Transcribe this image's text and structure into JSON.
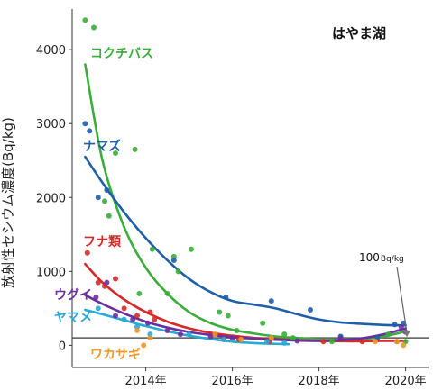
{
  "chart_data": {
    "type": "scatter",
    "title": "はやま湖",
    "ylabel": "放射性セシウム濃度(Bq/kg)",
    "xlabel": "",
    "xlim": [
      2012.3,
      2020.55
    ],
    "ylim": [
      -300,
      4550
    ],
    "x_ticks": [
      2014,
      2016,
      2018,
      2020
    ],
    "x_tick_labels": [
      "2014年",
      "2016年",
      "2018年",
      "2020年"
    ],
    "y_ticks": [
      0,
      1000,
      2000,
      3000,
      4000
    ],
    "y_tick_labels": [
      "0",
      "1000",
      "2000",
      "3000",
      "4000"
    ],
    "grid": false,
    "reference_line": {
      "value": 100,
      "label_number": "100",
      "label_unit": "Bq/kg",
      "color": "#555555"
    },
    "series": [
      {
        "name": "コクチバス",
        "color": "#3aad3a",
        "points": [
          [
            2012.6,
            4400
          ],
          [
            2012.8,
            4300
          ],
          [
            2013.05,
            1950
          ],
          [
            2013.15,
            1750
          ],
          [
            2013.3,
            2600
          ],
          [
            2013.75,
            2650
          ],
          [
            2013.85,
            700
          ],
          [
            2014.15,
            1300
          ],
          [
            2014.5,
            700
          ],
          [
            2014.65,
            1200
          ],
          [
            2014.75,
            1000
          ],
          [
            2015.05,
            1300
          ],
          [
            2015.7,
            450
          ],
          [
            2015.9,
            400
          ],
          [
            2016.1,
            200
          ],
          [
            2016.7,
            300
          ],
          [
            2017.2,
            150
          ],
          [
            2017.4,
            100
          ],
          [
            2018.3,
            50
          ],
          [
            2019.6,
            150
          ],
          [
            2020.0,
            50
          ]
        ],
        "trend": [
          [
            2012.6,
            3800
          ],
          [
            2013.0,
            2500
          ],
          [
            2013.5,
            1600
          ],
          [
            2014.0,
            1050
          ],
          [
            2014.5,
            700
          ],
          [
            2015.0,
            450
          ],
          [
            2015.5,
            300
          ],
          [
            2016.0,
            210
          ],
          [
            2016.5,
            160
          ],
          [
            2017.0,
            120
          ],
          [
            2017.5,
            100
          ],
          [
            2018.0,
            80
          ],
          [
            2018.5,
            75
          ],
          [
            2019.0,
            85
          ],
          [
            2019.5,
            120
          ],
          [
            2020.0,
            190
          ]
        ]
      },
      {
        "name": "ナマズ",
        "color": "#1f5fa8",
        "points": [
          [
            2012.6,
            3000
          ],
          [
            2012.7,
            2900
          ],
          [
            2012.9,
            2000
          ],
          [
            2013.1,
            2100
          ],
          [
            2014.65,
            1150
          ],
          [
            2015.85,
            650
          ],
          [
            2016.9,
            600
          ],
          [
            2017.8,
            480
          ],
          [
            2018.5,
            120
          ],
          [
            2019.35,
            100
          ],
          [
            2019.75,
            280
          ],
          [
            2019.95,
            300
          ]
        ],
        "trend": [
          [
            2012.6,
            2550
          ],
          [
            2013.0,
            2200
          ],
          [
            2013.5,
            1800
          ],
          [
            2014.0,
            1450
          ],
          [
            2014.5,
            1150
          ],
          [
            2015.0,
            900
          ],
          [
            2015.5,
            720
          ],
          [
            2016.0,
            600
          ],
          [
            2016.5,
            550
          ],
          [
            2017.0,
            500
          ],
          [
            2017.5,
            420
          ],
          [
            2018.0,
            350
          ],
          [
            2018.5,
            310
          ],
          [
            2019.0,
            290
          ],
          [
            2019.5,
            275
          ],
          [
            2020.0,
            270
          ]
        ]
      },
      {
        "name": "フナ類",
        "color": "#d42a2a",
        "points": [
          [
            2012.65,
            1250
          ],
          [
            2012.9,
            850
          ],
          [
            2013.05,
            800
          ],
          [
            2013.3,
            900
          ],
          [
            2013.5,
            500
          ],
          [
            2013.8,
            400
          ],
          [
            2014.1,
            450
          ],
          [
            2014.2,
            350
          ],
          [
            2015.8,
            80
          ],
          [
            2016.15,
            80
          ],
          [
            2016.85,
            50
          ],
          [
            2018.1,
            50
          ],
          [
            2019.0,
            50
          ],
          [
            2019.8,
            50
          ]
        ],
        "trend": [
          [
            2012.6,
            1100
          ],
          [
            2013.0,
            850
          ],
          [
            2013.5,
            620
          ],
          [
            2014.0,
            450
          ],
          [
            2014.5,
            320
          ],
          [
            2015.0,
            230
          ],
          [
            2015.5,
            170
          ],
          [
            2016.0,
            130
          ],
          [
            2016.5,
            100
          ],
          [
            2017.0,
            85
          ],
          [
            2017.5,
            70
          ],
          [
            2018.0,
            60
          ],
          [
            2018.5,
            55
          ],
          [
            2019.0,
            55
          ],
          [
            2019.5,
            60
          ],
          [
            2020.0,
            60
          ]
        ]
      },
      {
        "name": "ウグイ",
        "color": "#6a2fa0",
        "points": [
          [
            2012.85,
            650
          ],
          [
            2013.1,
            850
          ],
          [
            2013.3,
            400
          ],
          [
            2013.7,
            350
          ],
          [
            2014.05,
            300
          ],
          [
            2014.5,
            200
          ],
          [
            2014.8,
            150
          ],
          [
            2015.5,
            120
          ],
          [
            2016.0,
            100
          ],
          [
            2017.5,
            60
          ],
          [
            2018.5,
            100
          ],
          [
            2019.9,
            250
          ],
          [
            2020.0,
            180
          ]
        ],
        "trend": [
          [
            2012.6,
            680
          ],
          [
            2013.0,
            560
          ],
          [
            2013.5,
            430
          ],
          [
            2014.0,
            320
          ],
          [
            2014.5,
            240
          ],
          [
            2015.0,
            180
          ],
          [
            2015.5,
            140
          ],
          [
            2016.0,
            110
          ],
          [
            2016.5,
            90
          ],
          [
            2017.0,
            75
          ],
          [
            2017.5,
            65
          ],
          [
            2018.0,
            60
          ],
          [
            2018.5,
            70
          ],
          [
            2019.0,
            95
          ],
          [
            2019.5,
            150
          ],
          [
            2020.0,
            230
          ]
        ]
      },
      {
        "name": "ヤマメ",
        "color": "#29a9d6",
        "points": [
          [
            2012.9,
            500
          ],
          [
            2013.5,
            350
          ],
          [
            2013.8,
            250
          ],
          [
            2014.1,
            150
          ],
          [
            2015.0,
            150
          ],
          [
            2015.8,
            80
          ],
          [
            2016.8,
            50
          ],
          [
            2017.2,
            30
          ]
        ],
        "trend": [
          [
            2012.6,
            480
          ],
          [
            2013.0,
            420
          ],
          [
            2013.5,
            340
          ],
          [
            2014.0,
            260
          ],
          [
            2014.5,
            190
          ],
          [
            2015.0,
            130
          ],
          [
            2015.5,
            85
          ],
          [
            2016.0,
            50
          ],
          [
            2016.5,
            30
          ],
          [
            2017.0,
            20
          ],
          [
            2017.3,
            15
          ]
        ]
      },
      {
        "name": "ワカサギ",
        "color": "#f0962a",
        "points": [
          [
            2013.8,
            200
          ],
          [
            2013.95,
            0
          ],
          [
            2014.1,
            100
          ],
          [
            2015.6,
            150
          ],
          [
            2016.2,
            80
          ],
          [
            2016.9,
            100
          ],
          [
            2019.3,
            50
          ],
          [
            2019.8,
            50
          ],
          [
            2019.95,
            0
          ]
        ],
        "trend": []
      }
    ]
  }
}
